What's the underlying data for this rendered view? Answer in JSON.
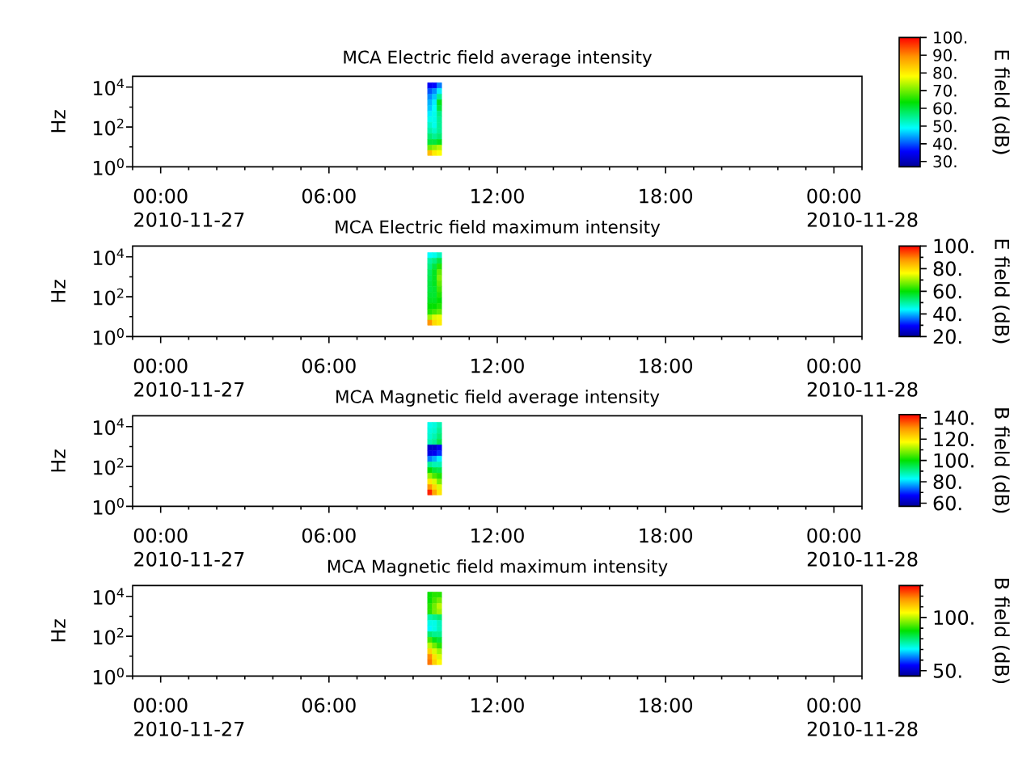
{
  "chart_data": [
    {
      "type": "scatter",
      "title": "MCA  Electric field average intensity",
      "ylabel": "Hz",
      "clabel": "E field (dB)",
      "marker": "square",
      "log": "y",
      "x": [
        "2010-11-27T09:36",
        "2010-11-27T09:46",
        "2010-11-27T09:56",
        "2010-11-27T09:36",
        "2010-11-27T09:46",
        "2010-11-27T09:56",
        "2010-11-27T09:36",
        "2010-11-27T09:46",
        "2010-11-27T09:56",
        "2010-11-27T09:36",
        "2010-11-27T09:46",
        "2010-11-27T09:56",
        "2010-11-27T09:36",
        "2010-11-27T09:46",
        "2010-11-27T09:56",
        "2010-11-27T09:36",
        "2010-11-27T09:46",
        "2010-11-27T09:56",
        "2010-11-27T09:36",
        "2010-11-27T09:46",
        "2010-11-27T09:56",
        "2010-11-27T09:36",
        "2010-11-27T09:46",
        "2010-11-27T09:56",
        "2010-11-27T09:36",
        "2010-11-27T09:46",
        "2010-11-27T09:56",
        "2010-11-27T09:36",
        "2010-11-27T09:46",
        "2010-11-27T09:56",
        "2010-11-27T09:36",
        "2010-11-27T09:46",
        "2010-11-27T09:56",
        "2010-11-27T09:36",
        "2010-11-27T09:46",
        "2010-11-27T09:56",
        "2010-11-27T09:36",
        "2010-11-27T09:46",
        "2010-11-27T09:56"
      ],
      "values": [
        12000,
        12000,
        12000,
        6300,
        6300,
        6300,
        3200,
        3200,
        3200,
        1700,
        1700,
        1700,
        870,
        870,
        870,
        460,
        460,
        460,
        240,
        240,
        240,
        120,
        120,
        120,
        65,
        65,
        65,
        33,
        33,
        33,
        17,
        17,
        17,
        9,
        9,
        9,
        5,
        5,
        5
      ],
      "cvalues": [
        35,
        36,
        42,
        40,
        43,
        48,
        43,
        46,
        55,
        45,
        48,
        62,
        46,
        49,
        60,
        48,
        50,
        56,
        50,
        50,
        55,
        52,
        50,
        55,
        54,
        52,
        55,
        57,
        55,
        57,
        60,
        60,
        62,
        70,
        72,
        74,
        85,
        80,
        78
      ],
      "xlim": [
        "2010-11-26T23:00",
        "2010-11-28T01:00"
      ],
      "xticks": [
        {
          "value": "2010-11-26T23:00",
          "label": null
        },
        {
          "value": "2010-11-27T00:00",
          "label": "00:00"
        },
        {
          "value": "2010-11-27T01:00",
          "label": null
        },
        {
          "value": "2010-11-27T02:00",
          "label": null
        },
        {
          "value": "2010-11-27T03:00",
          "label": null
        },
        {
          "value": "2010-11-27T04:00",
          "label": null
        },
        {
          "value": "2010-11-27T05:00",
          "label": null
        },
        {
          "value": "2010-11-27T06:00",
          "label": "06:00"
        },
        {
          "value": "2010-11-27T07:00",
          "label": null
        },
        {
          "value": "2010-11-27T08:00",
          "label": null
        },
        {
          "value": "2010-11-27T09:00",
          "label": null
        },
        {
          "value": "2010-11-27T10:00",
          "label": null
        },
        {
          "value": "2010-11-27T11:00",
          "label": null
        },
        {
          "value": "2010-11-27T12:00",
          "label": "12:00"
        },
        {
          "value": "2010-11-27T13:00",
          "label": null
        },
        {
          "value": "2010-11-27T14:00",
          "label": null
        },
        {
          "value": "2010-11-27T15:00",
          "label": null
        },
        {
          "value": "2010-11-27T16:00",
          "label": null
        },
        {
          "value": "2010-11-27T17:00",
          "label": null
        },
        {
          "value": "2010-11-27T18:00",
          "label": "18:00"
        },
        {
          "value": "2010-11-27T19:00",
          "label": null
        },
        {
          "value": "2010-11-27T20:00",
          "label": null
        },
        {
          "value": "2010-11-27T21:00",
          "label": null
        },
        {
          "value": "2010-11-27T22:00",
          "label": null
        },
        {
          "value": "2010-11-27T23:00",
          "label": null
        },
        {
          "value": "2010-11-28T00:00",
          "label": "00:00"
        },
        {
          "value": "2010-11-28T01:00",
          "label": null
        }
      ],
      "ylim": [
        1,
        35000
      ],
      "yticks": [
        {
          "value": 1,
          "label": "10$^{0}$"
        },
        {
          "value": 10,
          "label": null
        },
        {
          "value": 100,
          "label": "10$^{2}$"
        },
        {
          "value": 1000,
          "label": null
        },
        {
          "value": 10000,
          "label": "10$^{4}$"
        }
      ],
      "clim": [
        27,
        100
      ],
      "cticks": [
        {
          "value": 30,
          "label": "30."
        },
        {
          "value": 40,
          "label": "40."
        },
        {
          "value": 50,
          "label": "50."
        },
        {
          "value": 60,
          "label": "60."
        },
        {
          "value": 70,
          "label": "70."
        },
        {
          "value": 80,
          "label": "80."
        },
        {
          "value": 90,
          "label": "90."
        },
        {
          "value": 100,
          "label": "100."
        }
      ],
      "annotations": [
        "2010-11-27",
        "2010-11-28"
      ]
    },
    {
      "type": "scatter",
      "title": "MCA  Electric field maximum intensity",
      "ylabel": "Hz",
      "clabel": "E field (dB)",
      "marker": "square",
      "log": "y",
      "x": [
        "2010-11-27T09:36",
        "2010-11-27T09:46",
        "2010-11-27T09:56",
        "2010-11-27T09:36",
        "2010-11-27T09:46",
        "2010-11-27T09:56",
        "2010-11-27T09:36",
        "2010-11-27T09:46",
        "2010-11-27T09:56",
        "2010-11-27T09:36",
        "2010-11-27T09:46",
        "2010-11-27T09:56",
        "2010-11-27T09:36",
        "2010-11-27T09:46",
        "2010-11-27T09:56",
        "2010-11-27T09:36",
        "2010-11-27T09:46",
        "2010-11-27T09:56",
        "2010-11-27T09:36",
        "2010-11-27T09:46",
        "2010-11-27T09:56",
        "2010-11-27T09:36",
        "2010-11-27T09:46",
        "2010-11-27T09:56",
        "2010-11-27T09:36",
        "2010-11-27T09:46",
        "2010-11-27T09:56",
        "2010-11-27T09:36",
        "2010-11-27T09:46",
        "2010-11-27T09:56",
        "2010-11-27T09:36",
        "2010-11-27T09:46",
        "2010-11-27T09:56",
        "2010-11-27T09:36",
        "2010-11-27T09:46",
        "2010-11-27T09:56",
        "2010-11-27T09:36",
        "2010-11-27T09:46",
        "2010-11-27T09:56"
      ],
      "values": [
        12000,
        12000,
        12000,
        6300,
        6300,
        6300,
        3200,
        3200,
        3200,
        1700,
        1700,
        1700,
        870,
        870,
        870,
        460,
        460,
        460,
        240,
        240,
        240,
        120,
        120,
        120,
        65,
        65,
        65,
        33,
        33,
        33,
        17,
        17,
        17,
        9,
        9,
        9,
        5,
        5,
        5
      ],
      "cvalues": [
        44,
        45,
        48,
        50,
        52,
        56,
        52,
        56,
        62,
        54,
        58,
        66,
        55,
        58,
        68,
        56,
        58,
        66,
        56,
        57,
        64,
        57,
        57,
        62,
        58,
        58,
        60,
        60,
        60,
        62,
        62,
        64,
        66,
        70,
        74,
        75,
        88,
        80,
        78
      ],
      "xlim": [
        "2010-11-26T23:00",
        "2010-11-28T01:00"
      ],
      "xticks": [
        {
          "value": "2010-11-26T23:00",
          "label": null
        },
        {
          "value": "2010-11-27T00:00",
          "label": "00:00"
        },
        {
          "value": "2010-11-27T01:00",
          "label": null
        },
        {
          "value": "2010-11-27T02:00",
          "label": null
        },
        {
          "value": "2010-11-27T03:00",
          "label": null
        },
        {
          "value": "2010-11-27T04:00",
          "label": null
        },
        {
          "value": "2010-11-27T05:00",
          "label": null
        },
        {
          "value": "2010-11-27T06:00",
          "label": "06:00"
        },
        {
          "value": "2010-11-27T07:00",
          "label": null
        },
        {
          "value": "2010-11-27T08:00",
          "label": null
        },
        {
          "value": "2010-11-27T09:00",
          "label": null
        },
        {
          "value": "2010-11-27T10:00",
          "label": null
        },
        {
          "value": "2010-11-27T11:00",
          "label": null
        },
        {
          "value": "2010-11-27T12:00",
          "label": "12:00"
        },
        {
          "value": "2010-11-27T13:00",
          "label": null
        },
        {
          "value": "2010-11-27T14:00",
          "label": null
        },
        {
          "value": "2010-11-27T15:00",
          "label": null
        },
        {
          "value": "2010-11-27T16:00",
          "label": null
        },
        {
          "value": "2010-11-27T17:00",
          "label": null
        },
        {
          "value": "2010-11-27T18:00",
          "label": "18:00"
        },
        {
          "value": "2010-11-27T19:00",
          "label": null
        },
        {
          "value": "2010-11-27T20:00",
          "label": null
        },
        {
          "value": "2010-11-27T21:00",
          "label": null
        },
        {
          "value": "2010-11-27T22:00",
          "label": null
        },
        {
          "value": "2010-11-27T23:00",
          "label": null
        },
        {
          "value": "2010-11-28T00:00",
          "label": "00:00"
        },
        {
          "value": "2010-11-28T01:00",
          "label": null
        }
      ],
      "ylim": [
        1,
        35000
      ],
      "yticks": [
        {
          "value": 1,
          "label": "10$^{0}$"
        },
        {
          "value": 10,
          "label": null
        },
        {
          "value": 100,
          "label": "10$^{2}$"
        },
        {
          "value": 1000,
          "label": null
        },
        {
          "value": 10000,
          "label": "10$^{4}$"
        }
      ],
      "clim": [
        20,
        100
      ],
      "cticks": [
        {
          "value": 20,
          "label": "20."
        },
        {
          "value": 30,
          "label": null
        },
        {
          "value": 40,
          "label": "40."
        },
        {
          "value": 50,
          "label": null
        },
        {
          "value": 60,
          "label": "60."
        },
        {
          "value": 70,
          "label": null
        },
        {
          "value": 80,
          "label": "80."
        },
        {
          "value": 90,
          "label": null
        },
        {
          "value": 100,
          "label": "100."
        }
      ],
      "annotations": [
        "2010-11-27",
        "2010-11-28"
      ]
    },
    {
      "type": "scatter",
      "title": "MCA  Magnetic field average intensity",
      "ylabel": "Hz",
      "clabel": "B field (dB)",
      "marker": "square",
      "log": "y",
      "x": [
        "2010-11-27T09:36",
        "2010-11-27T09:46",
        "2010-11-27T09:56",
        "2010-11-27T09:36",
        "2010-11-27T09:46",
        "2010-11-27T09:56",
        "2010-11-27T09:36",
        "2010-11-27T09:46",
        "2010-11-27T09:56",
        "2010-11-27T09:36",
        "2010-11-27T09:46",
        "2010-11-27T09:56",
        "2010-11-27T09:36",
        "2010-11-27T09:46",
        "2010-11-27T09:56",
        "2010-11-27T09:36",
        "2010-11-27T09:46",
        "2010-11-27T09:56",
        "2010-11-27T09:36",
        "2010-11-27T09:46",
        "2010-11-27T09:56",
        "2010-11-27T09:36",
        "2010-11-27T09:46",
        "2010-11-27T09:56",
        "2010-11-27T09:36",
        "2010-11-27T09:46",
        "2010-11-27T09:56",
        "2010-11-27T09:36",
        "2010-11-27T09:46",
        "2010-11-27T09:56",
        "2010-11-27T09:36",
        "2010-11-27T09:46",
        "2010-11-27T09:56",
        "2010-11-27T09:36",
        "2010-11-27T09:46",
        "2010-11-27T09:56",
        "2010-11-27T09:36",
        "2010-11-27T09:46",
        "2010-11-27T09:56"
      ],
      "values": [
        12000,
        12000,
        12000,
        6300,
        6300,
        6300,
        3200,
        3200,
        3200,
        1700,
        1700,
        1700,
        870,
        870,
        870,
        460,
        460,
        460,
        240,
        240,
        240,
        120,
        120,
        120,
        65,
        65,
        65,
        33,
        33,
        33,
        17,
        17,
        17,
        9,
        9,
        9,
        5,
        5,
        5
      ],
      "cvalues": [
        84,
        85,
        88,
        85,
        86,
        90,
        86,
        88,
        92,
        88,
        90,
        95,
        62,
        62,
        66,
        65,
        66,
        70,
        75,
        78,
        82,
        90,
        88,
        88,
        100,
        96,
        95,
        110,
        105,
        102,
        120,
        115,
        108,
        130,
        122,
        115,
        140,
        128,
        120
      ],
      "xlim": [
        "2010-11-26T23:00",
        "2010-11-28T01:00"
      ],
      "xticks": [
        {
          "value": "2010-11-26T23:00",
          "label": null
        },
        {
          "value": "2010-11-27T00:00",
          "label": "00:00"
        },
        {
          "value": "2010-11-27T01:00",
          "label": null
        },
        {
          "value": "2010-11-27T02:00",
          "label": null
        },
        {
          "value": "2010-11-27T03:00",
          "label": null
        },
        {
          "value": "2010-11-27T04:00",
          "label": null
        },
        {
          "value": "2010-11-27T05:00",
          "label": null
        },
        {
          "value": "2010-11-27T06:00",
          "label": "06:00"
        },
        {
          "value": "2010-11-27T07:00",
          "label": null
        },
        {
          "value": "2010-11-27T08:00",
          "label": null
        },
        {
          "value": "2010-11-27T09:00",
          "label": null
        },
        {
          "value": "2010-11-27T10:00",
          "label": null
        },
        {
          "value": "2010-11-27T11:00",
          "label": null
        },
        {
          "value": "2010-11-27T12:00",
          "label": "12:00"
        },
        {
          "value": "2010-11-27T13:00",
          "label": null
        },
        {
          "value": "2010-11-27T14:00",
          "label": null
        },
        {
          "value": "2010-11-27T15:00",
          "label": null
        },
        {
          "value": "2010-11-27T16:00",
          "label": null
        },
        {
          "value": "2010-11-27T17:00",
          "label": null
        },
        {
          "value": "2010-11-27T18:00",
          "label": "18:00"
        },
        {
          "value": "2010-11-27T19:00",
          "label": null
        },
        {
          "value": "2010-11-27T20:00",
          "label": null
        },
        {
          "value": "2010-11-27T21:00",
          "label": null
        },
        {
          "value": "2010-11-27T22:00",
          "label": null
        },
        {
          "value": "2010-11-27T23:00",
          "label": null
        },
        {
          "value": "2010-11-28T00:00",
          "label": "00:00"
        },
        {
          "value": "2010-11-28T01:00",
          "label": null
        }
      ],
      "ylim": [
        1,
        35000
      ],
      "yticks": [
        {
          "value": 1,
          "label": "10$^{0}$"
        },
        {
          "value": 10,
          "label": null
        },
        {
          "value": 100,
          "label": "10$^{2}$"
        },
        {
          "value": 1000,
          "label": null
        },
        {
          "value": 10000,
          "label": "10$^{4}$"
        }
      ],
      "clim": [
        57,
        143
      ],
      "cticks": [
        {
          "value": 60,
          "label": "60."
        },
        {
          "value": 70,
          "label": null
        },
        {
          "value": 80,
          "label": "80."
        },
        {
          "value": 90,
          "label": null
        },
        {
          "value": 100,
          "label": "100."
        },
        {
          "value": 110,
          "label": null
        },
        {
          "value": 120,
          "label": "120."
        },
        {
          "value": 130,
          "label": null
        },
        {
          "value": 140,
          "label": "140."
        }
      ],
      "annotations": [
        "2010-11-27",
        "2010-11-28"
      ]
    },
    {
      "type": "scatter",
      "title": "MCA  Magnetic field maximum intensity",
      "ylabel": "Hz",
      "clabel": "B field (dB)",
      "marker": "square",
      "log": "y",
      "x": [
        "2010-11-27T09:36",
        "2010-11-27T09:46",
        "2010-11-27T09:56",
        "2010-11-27T09:36",
        "2010-11-27T09:46",
        "2010-11-27T09:56",
        "2010-11-27T09:36",
        "2010-11-27T09:46",
        "2010-11-27T09:56",
        "2010-11-27T09:36",
        "2010-11-27T09:46",
        "2010-11-27T09:56",
        "2010-11-27T09:36",
        "2010-11-27T09:46",
        "2010-11-27T09:56",
        "2010-11-27T09:36",
        "2010-11-27T09:46",
        "2010-11-27T09:56",
        "2010-11-27T09:36",
        "2010-11-27T09:46",
        "2010-11-27T09:56",
        "2010-11-27T09:36",
        "2010-11-27T09:46",
        "2010-11-27T09:56",
        "2010-11-27T09:36",
        "2010-11-27T09:46",
        "2010-11-27T09:56",
        "2010-11-27T09:36",
        "2010-11-27T09:46",
        "2010-11-27T09:56",
        "2010-11-27T09:36",
        "2010-11-27T09:46",
        "2010-11-27T09:56",
        "2010-11-27T09:36",
        "2010-11-27T09:46",
        "2010-11-27T09:56",
        "2010-11-27T09:36",
        "2010-11-27T09:46",
        "2010-11-27T09:56"
      ],
      "values": [
        12000,
        12000,
        12000,
        6300,
        6300,
        6300,
        3200,
        3200,
        3200,
        1700,
        1700,
        1700,
        870,
        870,
        870,
        460,
        460,
        460,
        240,
        240,
        240,
        120,
        120,
        120,
        65,
        65,
        65,
        33,
        33,
        33,
        17,
        17,
        17,
        9,
        9,
        9,
        5,
        5,
        5
      ],
      "cvalues": [
        88,
        90,
        90,
        88,
        92,
        95,
        90,
        95,
        100,
        90,
        95,
        98,
        76,
        78,
        80,
        72,
        72,
        75,
        70,
        72,
        75,
        80,
        78,
        78,
        92,
        86,
        84,
        100,
        95,
        90,
        110,
        102,
        98,
        118,
        108,
        102,
        120,
        110,
        105
      ],
      "xlim": [
        "2010-11-26T23:00",
        "2010-11-28T01:00"
      ],
      "xticks": [
        {
          "value": "2010-11-26T23:00",
          "label": null
        },
        {
          "value": "2010-11-27T00:00",
          "label": "00:00"
        },
        {
          "value": "2010-11-27T01:00",
          "label": null
        },
        {
          "value": "2010-11-27T02:00",
          "label": null
        },
        {
          "value": "2010-11-27T03:00",
          "label": null
        },
        {
          "value": "2010-11-27T04:00",
          "label": null
        },
        {
          "value": "2010-11-27T05:00",
          "label": null
        },
        {
          "value": "2010-11-27T06:00",
          "label": "06:00"
        },
        {
          "value": "2010-11-27T07:00",
          "label": null
        },
        {
          "value": "2010-11-27T08:00",
          "label": null
        },
        {
          "value": "2010-11-27T09:00",
          "label": null
        },
        {
          "value": "2010-11-27T10:00",
          "label": null
        },
        {
          "value": "2010-11-27T11:00",
          "label": null
        },
        {
          "value": "2010-11-27T12:00",
          "label": "12:00"
        },
        {
          "value": "2010-11-27T13:00",
          "label": null
        },
        {
          "value": "2010-11-27T14:00",
          "label": null
        },
        {
          "value": "2010-11-27T15:00",
          "label": null
        },
        {
          "value": "2010-11-27T16:00",
          "label": null
        },
        {
          "value": "2010-11-27T17:00",
          "label": null
        },
        {
          "value": "2010-11-27T18:00",
          "label": "18:00"
        },
        {
          "value": "2010-11-27T19:00",
          "label": null
        },
        {
          "value": "2010-11-27T20:00",
          "label": null
        },
        {
          "value": "2010-11-27T21:00",
          "label": null
        },
        {
          "value": "2010-11-27T22:00",
          "label": null
        },
        {
          "value": "2010-11-27T23:00",
          "label": null
        },
        {
          "value": "2010-11-28T00:00",
          "label": "00:00"
        },
        {
          "value": "2010-11-28T01:00",
          "label": null
        }
      ],
      "ylim": [
        1,
        35000
      ],
      "yticks": [
        {
          "value": 1,
          "label": "10$^{0}$"
        },
        {
          "value": 10,
          "label": null
        },
        {
          "value": 100,
          "label": "10$^{2}$"
        },
        {
          "value": 1000,
          "label": null
        },
        {
          "value": 10000,
          "label": "10$^{4}$"
        }
      ],
      "clim": [
        45,
        130
      ],
      "cticks": [
        {
          "value": 50,
          "label": "50."
        },
        {
          "value": 60,
          "label": null
        },
        {
          "value": 70,
          "label": null
        },
        {
          "value": 80,
          "label": null
        },
        {
          "value": 90,
          "label": null
        },
        {
          "value": 100,
          "label": "100."
        },
        {
          "value": 110,
          "label": null
        },
        {
          "value": 120,
          "label": null
        },
        {
          "value": 130,
          "label": null
        }
      ],
      "annotations": [
        "2010-11-27",
        "2010-11-28"
      ]
    }
  ]
}
